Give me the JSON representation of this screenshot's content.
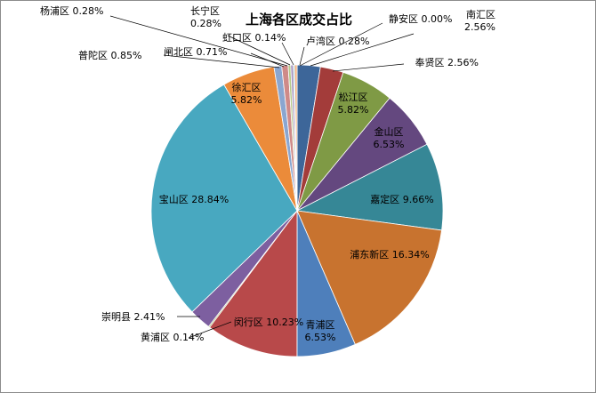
{
  "chart_data": {
    "type": "pie",
    "title": "上海各区成交占比",
    "slices": [
      {
        "label": "南汇区",
        "value": 2.56,
        "text": "2.56%",
        "color": "#3d6699"
      },
      {
        "label": "奉贤区",
        "value": 2.56,
        "text": "2.56%",
        "color": "#a33c3a"
      },
      {
        "label": "松江区",
        "value": 5.82,
        "text": "5.82%",
        "color": "#7f9a45"
      },
      {
        "label": "金山区",
        "value": 6.53,
        "text": "6.53%",
        "color": "#64487f"
      },
      {
        "label": "嘉定区",
        "value": 9.66,
        "text": "9.66%",
        "color": "#368796"
      },
      {
        "label": "浦东新区",
        "value": 16.34,
        "text": "16.34%",
        "color": "#c8732f"
      },
      {
        "label": "青浦区",
        "value": 6.53,
        "text": "6.53%",
        "color": "#4e7fbb"
      },
      {
        "label": "闵行区",
        "value": 10.23,
        "text": "10.23%",
        "color": "#b8494a"
      },
      {
        "label": "黄浦区",
        "value": 0.14,
        "text": "0.14%",
        "color": "#94ae55"
      },
      {
        "label": "崇明县",
        "value": 2.41,
        "text": "2.41%",
        "color": "#7d5fa0"
      },
      {
        "label": "宝山区",
        "value": 28.84,
        "text": "28.84%",
        "color": "#48a8c0"
      },
      {
        "label": "徐汇区",
        "value": 5.82,
        "text": "5.82%",
        "color": "#eb8b3a"
      },
      {
        "label": "普陀区",
        "value": 0.85,
        "text": "0.85%",
        "color": "#8aa6d0"
      },
      {
        "label": "闸北区",
        "value": 0.71,
        "text": "0.71%",
        "color": "#cf8a88"
      },
      {
        "label": "杨浦区",
        "value": 0.28,
        "text": "0.28%",
        "color": "#b6ca8a"
      },
      {
        "label": "长宁区",
        "value": 0.28,
        "text": "0.28%",
        "color": "#a592be"
      },
      {
        "label": "虹口区",
        "value": 0.14,
        "text": "0.14%",
        "color": "#84c3d5"
      },
      {
        "label": "卢湾区",
        "value": 0.28,
        "text": "0.28%",
        "color": "#f1b07e"
      },
      {
        "label": "静安区",
        "value": 0.0,
        "text": "0.00%",
        "color": "#2c4d75"
      }
    ]
  }
}
